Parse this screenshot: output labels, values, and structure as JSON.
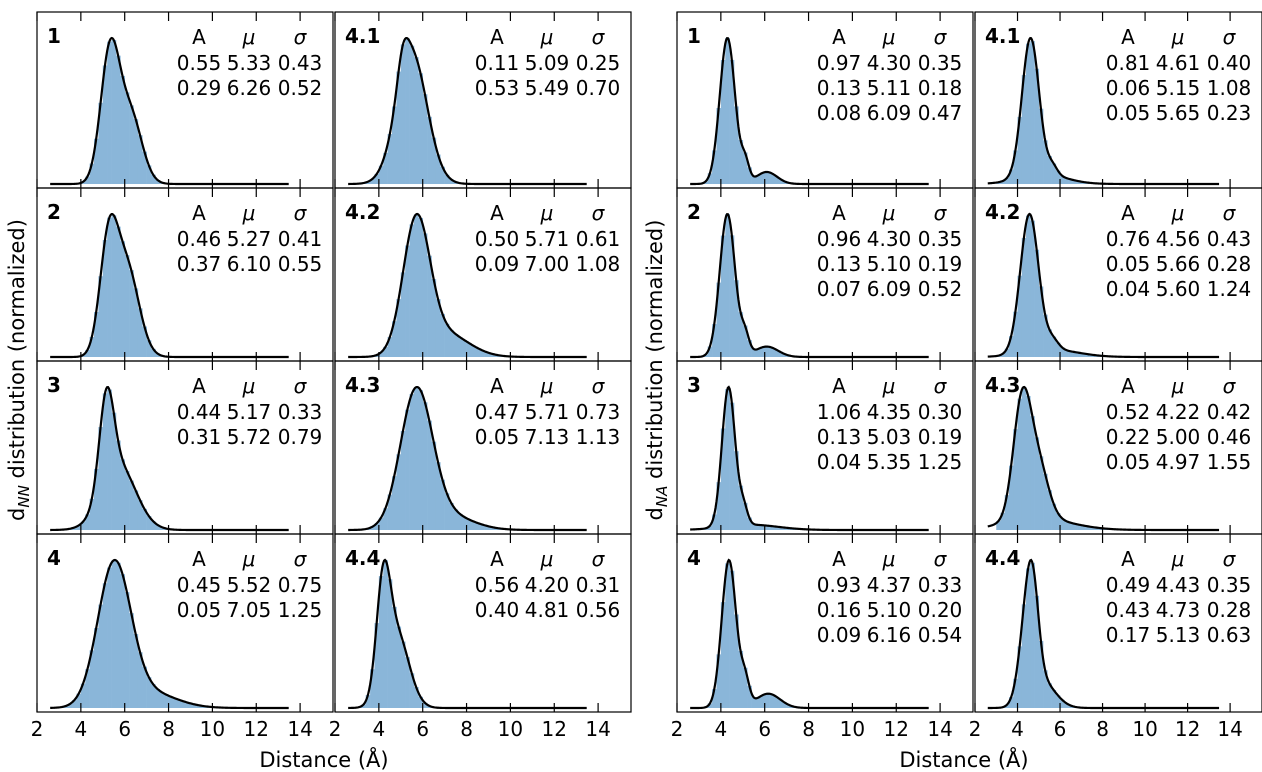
{
  "figure": {
    "left_ylabel": "d",
    "left_ylabel_sub": "NN",
    "left_ylabel_rest": " distribution (normalized)",
    "right_ylabel": "d",
    "right_ylabel_sub": "NA",
    "right_ylabel_rest": " distribution (normalized)",
    "xlabel": "Distance (Å)",
    "fit_color": "#000000",
    "hist_color": "#8ab6d9"
  },
  "chart_data": [
    {
      "type": "area",
      "group": "NN",
      "title": "1",
      "xlim": [
        2,
        15.5
      ],
      "xticks": [
        2,
        4,
        6,
        8,
        10,
        12,
        14
      ],
      "table_header": [
        "A",
        "μ",
        "σ"
      ],
      "components": [
        {
          "A": "0.55",
          "mu": "5.33",
          "sigma": "0.43"
        },
        {
          "A": "0.29",
          "mu": "6.26",
          "sigma": "0.52"
        }
      ]
    },
    {
      "type": "area",
      "group": "NN",
      "title": "4.1",
      "xlim": [
        2,
        15.5
      ],
      "xticks": [
        2,
        4,
        6,
        8,
        10,
        12,
        14
      ],
      "table_header": [
        "A",
        "μ",
        "σ"
      ],
      "components": [
        {
          "A": "0.11",
          "mu": "5.09",
          "sigma": "0.25"
        },
        {
          "A": "0.53",
          "mu": "5.49",
          "sigma": "0.70"
        }
      ]
    },
    {
      "type": "area",
      "group": "NN",
      "title": "2",
      "xlim": [
        2,
        15.5
      ],
      "xticks": [
        2,
        4,
        6,
        8,
        10,
        12,
        14
      ],
      "table_header": [
        "A",
        "μ",
        "σ"
      ],
      "components": [
        {
          "A": "0.46",
          "mu": "5.27",
          "sigma": "0.41"
        },
        {
          "A": "0.37",
          "mu": "6.10",
          "sigma": "0.55"
        }
      ]
    },
    {
      "type": "area",
      "group": "NN",
      "title": "4.2",
      "xlim": [
        2,
        15.5
      ],
      "xticks": [
        2,
        4,
        6,
        8,
        10,
        12,
        14
      ],
      "table_header": [
        "A",
        "μ",
        "σ"
      ],
      "components": [
        {
          "A": "0.50",
          "mu": "5.71",
          "sigma": "0.61"
        },
        {
          "A": "0.09",
          "mu": "7.00",
          "sigma": "1.08"
        }
      ]
    },
    {
      "type": "area",
      "group": "NN",
      "title": "3",
      "xlim": [
        2,
        15.5
      ],
      "xticks": [
        2,
        4,
        6,
        8,
        10,
        12,
        14
      ],
      "table_header": [
        "A",
        "μ",
        "σ"
      ],
      "components": [
        {
          "A": "0.44",
          "mu": "5.17",
          "sigma": "0.33"
        },
        {
          "A": "0.31",
          "mu": "5.72",
          "sigma": "0.79"
        }
      ]
    },
    {
      "type": "area",
      "group": "NN",
      "title": "4.3",
      "xlim": [
        2,
        15.5
      ],
      "xticks": [
        2,
        4,
        6,
        8,
        10,
        12,
        14
      ],
      "table_header": [
        "A",
        "μ",
        "σ"
      ],
      "components": [
        {
          "A": "0.47",
          "mu": "5.71",
          "sigma": "0.73"
        },
        {
          "A": "0.05",
          "mu": "7.13",
          "sigma": "1.13"
        }
      ]
    },
    {
      "type": "area",
      "group": "NN",
      "title": "4",
      "xlim": [
        2,
        15.5
      ],
      "xticks": [
        2,
        4,
        6,
        8,
        10,
        12,
        14
      ],
      "table_header": [
        "A",
        "μ",
        "σ"
      ],
      "components": [
        {
          "A": "0.45",
          "mu": "5.52",
          "sigma": "0.75"
        },
        {
          "A": "0.05",
          "mu": "7.05",
          "sigma": "1.25"
        }
      ]
    },
    {
      "type": "area",
      "group": "NN",
      "title": "4.4",
      "xlim": [
        2,
        15.5
      ],
      "xticks": [
        2,
        4,
        6,
        8,
        10,
        12,
        14
      ],
      "table_header": [
        "A",
        "μ",
        "σ"
      ],
      "components": [
        {
          "A": "0.56",
          "mu": "4.20",
          "sigma": "0.31"
        },
        {
          "A": "0.40",
          "mu": "4.81",
          "sigma": "0.56"
        }
      ]
    },
    {
      "type": "area",
      "group": "NA",
      "title": "1",
      "xlim": [
        2,
        15.5
      ],
      "xticks": [
        2,
        4,
        6,
        8,
        10,
        12,
        14
      ],
      "table_header": [
        "A",
        "μ",
        "σ"
      ],
      "components": [
        {
          "A": "0.97",
          "mu": "4.30",
          "sigma": "0.35"
        },
        {
          "A": "0.13",
          "mu": "5.11",
          "sigma": "0.18"
        },
        {
          "A": "0.08",
          "mu": "6.09",
          "sigma": "0.47"
        }
      ]
    },
    {
      "type": "area",
      "group": "NA",
      "title": "4.1",
      "xlim": [
        2,
        15.5
      ],
      "xticks": [
        2,
        4,
        6,
        8,
        10,
        12,
        14
      ],
      "table_header": [
        "A",
        "μ",
        "σ"
      ],
      "components": [
        {
          "A": "0.81",
          "mu": "4.61",
          "sigma": "0.40"
        },
        {
          "A": "0.06",
          "mu": "5.15",
          "sigma": "1.08"
        },
        {
          "A": "0.05",
          "mu": "5.65",
          "sigma": "0.23"
        }
      ]
    },
    {
      "type": "area",
      "group": "NA",
      "title": "2",
      "xlim": [
        2,
        15.5
      ],
      "xticks": [
        2,
        4,
        6,
        8,
        10,
        12,
        14
      ],
      "table_header": [
        "A",
        "μ",
        "σ"
      ],
      "components": [
        {
          "A": "0.96",
          "mu": "4.30",
          "sigma": "0.35"
        },
        {
          "A": "0.13",
          "mu": "5.10",
          "sigma": "0.19"
        },
        {
          "A": "0.07",
          "mu": "6.09",
          "sigma": "0.52"
        }
      ]
    },
    {
      "type": "area",
      "group": "NA",
      "title": "4.2",
      "xlim": [
        2,
        15.5
      ],
      "xticks": [
        2,
        4,
        6,
        8,
        10,
        12,
        14
      ],
      "table_header": [
        "A",
        "μ",
        "σ"
      ],
      "components": [
        {
          "A": "0.76",
          "mu": "4.56",
          "sigma": "0.43"
        },
        {
          "A": "0.05",
          "mu": "5.66",
          "sigma": "0.28"
        },
        {
          "A": "0.04",
          "mu": "5.60",
          "sigma": "1.24"
        }
      ]
    },
    {
      "type": "area",
      "group": "NA",
      "title": "3",
      "xlim": [
        2,
        15.5
      ],
      "xticks": [
        2,
        4,
        6,
        8,
        10,
        12,
        14
      ],
      "table_header": [
        "A",
        "μ",
        "σ"
      ],
      "components": [
        {
          "A": "1.06",
          "mu": "4.35",
          "sigma": "0.30"
        },
        {
          "A": "0.13",
          "mu": "5.03",
          "sigma": "0.19"
        },
        {
          "A": "0.04",
          "mu": "5.35",
          "sigma": "1.25"
        }
      ]
    },
    {
      "type": "area",
      "group": "NA",
      "title": "4.3",
      "xlim": [
        2,
        15.5
      ],
      "xticks": [
        2,
        4,
        6,
        8,
        10,
        12,
        14
      ],
      "table_header": [
        "A",
        "μ",
        "σ"
      ],
      "components": [
        {
          "A": "0.52",
          "mu": "4.22",
          "sigma": "0.42"
        },
        {
          "A": "0.22",
          "mu": "5.00",
          "sigma": "0.46"
        },
        {
          "A": "0.05",
          "mu": "4.97",
          "sigma": "1.55"
        }
      ]
    },
    {
      "type": "area",
      "group": "NA",
      "title": "4",
      "xlim": [
        2,
        15.5
      ],
      "xticks": [
        2,
        4,
        6,
        8,
        10,
        12,
        14
      ],
      "table_header": [
        "A",
        "μ",
        "σ"
      ],
      "components": [
        {
          "A": "0.93",
          "mu": "4.37",
          "sigma": "0.33"
        },
        {
          "A": "0.16",
          "mu": "5.10",
          "sigma": "0.20"
        },
        {
          "A": "0.09",
          "mu": "6.16",
          "sigma": "0.54"
        }
      ]
    },
    {
      "type": "area",
      "group": "NA",
      "title": "4.4",
      "xlim": [
        2,
        15.5
      ],
      "xticks": [
        2,
        4,
        6,
        8,
        10,
        12,
        14
      ],
      "table_header": [
        "A",
        "μ",
        "σ"
      ],
      "components": [
        {
          "A": "0.49",
          "mu": "4.43",
          "sigma": "0.35"
        },
        {
          "A": "0.43",
          "mu": "4.73",
          "sigma": "0.28"
        },
        {
          "A": "0.17",
          "mu": "5.13",
          "sigma": "0.63"
        }
      ]
    }
  ]
}
